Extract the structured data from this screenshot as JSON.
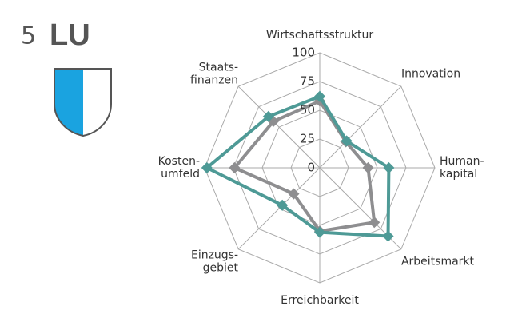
{
  "header": {
    "rank": "5",
    "canton": "LU"
  },
  "chart_data": {
    "type": "radar",
    "categories": [
      "Wirtschaftsstruktur",
      "Innovation",
      "Human-\nkapital",
      "Arbeitsmarkt",
      "Erreichbarkeit",
      "Einzugs-\ngebiet",
      "Kosten-\numfeld",
      "Staats-\nfinanzen"
    ],
    "series": [
      {
        "color": "#8e8e90",
        "values": [
          58,
          32,
          42,
          67,
          55,
          32,
          74,
          57
        ]
      },
      {
        "color": "#4e9a96",
        "values": [
          62,
          33,
          60,
          84,
          56,
          46,
          98,
          63
        ]
      }
    ],
    "rlim": [
      0,
      100
    ],
    "rticks": [
      0,
      25,
      50,
      75,
      100
    ],
    "grid": true
  }
}
